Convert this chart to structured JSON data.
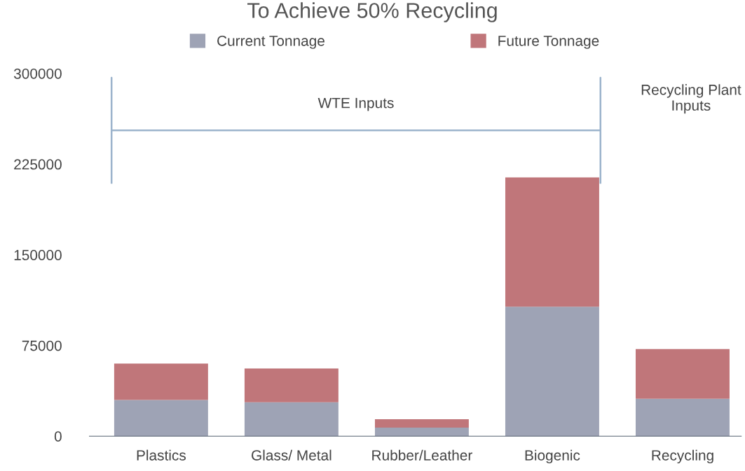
{
  "chart_data": {
    "type": "bar",
    "title": "To Achieve 50% Recycling",
    "stacked": true,
    "categories": [
      "Plastics",
      "Glass/ Metal",
      "Rubber/Leather",
      "Biogenic",
      "Recycling"
    ],
    "series": [
      {
        "name": "Current Tonnage",
        "color": "#9ea3b5",
        "values": [
          30000,
          28000,
          7000,
          107000,
          31000
        ]
      },
      {
        "name": "Future Tonnage",
        "color": "#c0767a",
        "values": [
          30000,
          28000,
          7000,
          107000,
          41000
        ]
      }
    ],
    "ylim": [
      0,
      300000
    ],
    "yticks": [
      0,
      75000,
      150000,
      225000,
      300000
    ],
    "ref_lines": [
      {
        "axis": "y",
        "value": 253000,
        "label": "WTE Inputs",
        "color": "#9bb3cc",
        "line_style": "solid"
      }
    ],
    "annotations": [
      "Recycling Plant Inputs"
    ],
    "grid": false,
    "legend": "top"
  }
}
